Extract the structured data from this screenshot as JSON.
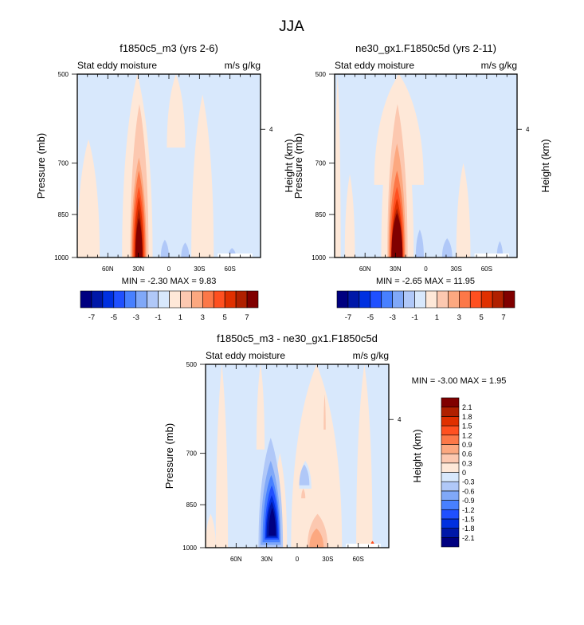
{
  "figure": {
    "title": "JJA"
  },
  "palette": {
    "levels_colors": [
      "#000080",
      "#0018a8",
      "#0030e0",
      "#2050ff",
      "#4880ff",
      "#80a8f8",
      "#b0c8f8",
      "#d8e8fc",
      "#fee8d8",
      "#fcc8b0",
      "#fca880",
      "#fc7848",
      "#ff5020",
      "#e03000",
      "#b02000",
      "#800000"
    ],
    "frame": "#000000"
  },
  "chart_data": [
    {
      "type": "heatmap",
      "id": "panel-test",
      "title": "f1850c5_m3 (yrs 2-6)",
      "subtitle_left": "Stat eddy moisture",
      "subtitle_right": "m/s g/kg",
      "xlabel": "",
      "ylabel": "Pressure (mb)",
      "ylabel_right": "Height (km)",
      "xlim": [
        90,
        -90
      ],
      "ylim": [
        1000,
        500
      ],
      "x_ticks": [
        {
          "v": 60,
          "label": "60N"
        },
        {
          "v": 30,
          "label": "30N"
        },
        {
          "v": 0,
          "label": "0"
        },
        {
          "v": -30,
          "label": "30S"
        },
        {
          "v": -60,
          "label": "60S"
        }
      ],
      "y_ticks": [
        {
          "v": 500,
          "label": "500"
        },
        {
          "v": 700,
          "label": "700"
        },
        {
          "v": 850,
          "label": "850"
        },
        {
          "v": 1000,
          "label": "1000"
        }
      ],
      "y_right_ticks": [
        {
          "p": 616,
          "label": "4"
        }
      ],
      "min_label": "MIN =",
      "min": "-2.30",
      "max_label": "MAX =",
      "max": "9.83",
      "background_level": 7,
      "missing_box": {
        "lat": [
          -48,
          -82
        ],
        "p": [
          1000,
          985
        ]
      },
      "regions": [
        {
          "level": 8,
          "lat": [
            46,
            16
          ],
          "p_top": 500,
          "p_bottom": 1000
        },
        {
          "level": 8,
          "lat": [
            -22,
            -44
          ],
          "p_top": 540,
          "p_bottom": 1000
        },
        {
          "level": 8,
          "lat": [
            90,
            68
          ],
          "p_top": 640,
          "p_bottom": 1000
        },
        {
          "level": 8,
          "lat": [
            2,
            -16
          ],
          "p_top": 500,
          "p_bottom": 660
        },
        {
          "level": 9,
          "lat": [
            38,
            20
          ],
          "p_top": 560,
          "p_bottom": 1000
        },
        {
          "level": 10,
          "lat": [
            37,
            22
          ],
          "p_top": 685,
          "p_bottom": 1000
        },
        {
          "level": 11,
          "lat": [
            36,
            23
          ],
          "p_top": 720,
          "p_bottom": 1000
        },
        {
          "level": 12,
          "lat": [
            35,
            24
          ],
          "p_top": 765,
          "p_bottom": 1000
        },
        {
          "level": 13,
          "lat": [
            34,
            25
          ],
          "p_top": 795,
          "p_bottom": 1000
        },
        {
          "level": 14,
          "lat": [
            33,
            26
          ],
          "p_top": 830,
          "p_bottom": 1000
        },
        {
          "level": 15,
          "lat": [
            33,
            26
          ],
          "p_top": 860,
          "p_bottom": 1000
        },
        {
          "level": 6,
          "lat": [
            8,
            0
          ],
          "p_top": 935,
          "p_bottom": 1000
        },
        {
          "level": 6,
          "lat": [
            -12,
            -20
          ],
          "p_top": 945,
          "p_bottom": 1000
        },
        {
          "level": 6,
          "lat": [
            -58,
            -66
          ],
          "p_top": 965,
          "p_bottom": 1000
        }
      ],
      "colorbar": {
        "orientation": "horizontal",
        "levels": [
          -7,
          -6,
          -5,
          -4,
          -3,
          -2,
          -1,
          0,
          1,
          2,
          3,
          4,
          5,
          6,
          7
        ],
        "tick_labels": [
          "-7",
          "-5",
          "-3",
          "-1",
          "1",
          "3",
          "5",
          "7"
        ]
      }
    },
    {
      "type": "heatmap",
      "id": "panel-control",
      "title": "ne30_gx1.F1850c5d (yrs 2-11)",
      "subtitle_left": "Stat eddy moisture",
      "subtitle_right": "m/s g/kg",
      "xlabel": "",
      "ylabel": "Pressure (mb)",
      "ylabel_right": "Height (km)",
      "xlim": [
        90,
        -90
      ],
      "ylim": [
        1000,
        500
      ],
      "x_ticks": [
        {
          "v": 60,
          "label": "60N"
        },
        {
          "v": 30,
          "label": "30N"
        },
        {
          "v": 0,
          "label": "0"
        },
        {
          "v": -30,
          "label": "30S"
        },
        {
          "v": -60,
          "label": "60S"
        }
      ],
      "y_ticks": [
        {
          "v": 500,
          "label": "500"
        },
        {
          "v": 700,
          "label": "700"
        },
        {
          "v": 850,
          "label": "850"
        },
        {
          "v": 1000,
          "label": "1000"
        }
      ],
      "y_right_ticks": [
        {
          "p": 616,
          "label": "4"
        }
      ],
      "min_label": "MIN =",
      "min": "-2.65",
      "max_label": "MAX =",
      "max": "11.95",
      "background_level": 7,
      "missing_box": {
        "lat": [
          -48,
          -82
        ],
        "p": [
          1000,
          985
        ]
      },
      "regions": [
        {
          "level": 8,
          "lat": [
            90,
            84
          ],
          "p_top": 500,
          "p_bottom": 1000
        },
        {
          "level": 8,
          "lat": [
            51,
            2
          ],
          "p_top": 500,
          "p_bottom": 760
        },
        {
          "level": 8,
          "lat": [
            44,
            12
          ],
          "p_top": 500,
          "p_bottom": 1000
        },
        {
          "level": 8,
          "lat": [
            80,
            70
          ],
          "p_top": 730,
          "p_bottom": 1000
        },
        {
          "level": 8,
          "lat": [
            -30,
            -44
          ],
          "p_top": 700,
          "p_bottom": 1000
        },
        {
          "level": 9,
          "lat": [
            38,
            18
          ],
          "p_top": 560,
          "p_bottom": 1000
        },
        {
          "level": 10,
          "lat": [
            37,
            20
          ],
          "p_top": 650,
          "p_bottom": 1000
        },
        {
          "level": 11,
          "lat": [
            36,
            21
          ],
          "p_top": 720,
          "p_bottom": 1000
        },
        {
          "level": 12,
          "lat": [
            35,
            22
          ],
          "p_top": 765,
          "p_bottom": 1000
        },
        {
          "level": 13,
          "lat": [
            34,
            23
          ],
          "p_top": 800,
          "p_bottom": 1000
        },
        {
          "level": 14,
          "lat": [
            34,
            23
          ],
          "p_top": 830,
          "p_bottom": 1000
        },
        {
          "level": 15,
          "lat": [
            34,
            23
          ],
          "p_top": 845,
          "p_bottom": 1000
        },
        {
          "level": 6,
          "lat": [
            10,
            2
          ],
          "p_top": 900,
          "p_bottom": 1000
        },
        {
          "level": 6,
          "lat": [
            -16,
            -26
          ],
          "p_top": 930,
          "p_bottom": 1000
        },
        {
          "level": 6,
          "lat": [
            -70,
            -76
          ],
          "p_top": 940,
          "p_bottom": 1000
        }
      ],
      "colorbar": {
        "orientation": "horizontal",
        "levels": [
          -7,
          -6,
          -5,
          -4,
          -3,
          -2,
          -1,
          0,
          1,
          2,
          3,
          4,
          5,
          6,
          7
        ],
        "tick_labels": [
          "-7",
          "-5",
          "-3",
          "-1",
          "1",
          "3",
          "5",
          "7"
        ]
      }
    },
    {
      "type": "heatmap",
      "id": "panel-diff",
      "title": "f1850c5_m3 - ne30_gx1.F1850c5d",
      "subtitle_left": "Stat eddy moisture",
      "subtitle_right": "m/s g/kg",
      "xlabel": "",
      "ylabel": "Pressure (mb)",
      "ylabel_right": "Height (km)",
      "xlim": [
        90,
        -90
      ],
      "ylim": [
        1000,
        500
      ],
      "x_ticks": [
        {
          "v": 60,
          "label": "60N"
        },
        {
          "v": 30,
          "label": "30N"
        },
        {
          "v": 0,
          "label": "0"
        },
        {
          "v": -30,
          "label": "30S"
        },
        {
          "v": -60,
          "label": "60S"
        }
      ],
      "y_ticks": [
        {
          "v": 500,
          "label": "500"
        },
        {
          "v": 700,
          "label": "700"
        },
        {
          "v": 850,
          "label": "850"
        },
        {
          "v": 1000,
          "label": "1000"
        }
      ],
      "y_right_ticks": [
        {
          "p": 616,
          "label": "4"
        }
      ],
      "min_label": "MIN =",
      "min": "-3.00",
      "max_label": "MAX =",
      "max": "1.95",
      "background_level": 7,
      "missing_box": {
        "lat": [
          -48,
          -82
        ],
        "p": [
          1000,
          985
        ]
      },
      "regions": [
        {
          "level": 8,
          "lat": [
            80,
            68
          ],
          "p_top": 500,
          "p_bottom": 1000
        },
        {
          "level": 8,
          "lat": [
            40,
            32
          ],
          "p_top": 500,
          "p_bottom": 690
        },
        {
          "level": 8,
          "lat": [
            6,
            -44
          ],
          "p_top": 500,
          "p_bottom": 1000
        },
        {
          "level": 8,
          "lat": [
            -58,
            -74
          ],
          "p_top": 500,
          "p_bottom": 985
        },
        {
          "level": 8,
          "lat": [
            90,
            80
          ],
          "p_top": 880,
          "p_bottom": 1000
        },
        {
          "level": 8,
          "lat": [
            24,
            10
          ],
          "p_top": 700,
          "p_bottom": 1000
        },
        {
          "level": 7,
          "lat": [
            -2,
            -14
          ],
          "p_top": 720,
          "p_bottom": 800
        },
        {
          "level": 6,
          "lat": [
            -2,
            -12
          ],
          "p_top": 730,
          "p_bottom": 790
        },
        {
          "level": 9,
          "lat": [
            -4,
            -8
          ],
          "p_top": 800,
          "p_bottom": 830
        },
        {
          "level": 9,
          "lat": [
            -26,
            -28
          ],
          "p_top": 560,
          "p_bottom": 640
        },
        {
          "level": 9,
          "lat": [
            -10,
            -30
          ],
          "p_top": 880,
          "p_bottom": 1000
        },
        {
          "level": 10,
          "lat": [
            -12,
            -26
          ],
          "p_top": 930,
          "p_bottom": 1000
        },
        {
          "level": 6,
          "lat": [
            38,
            14
          ],
          "p_top": 660,
          "p_bottom": 1000
        },
        {
          "level": 5,
          "lat": [
            36,
            16
          ],
          "p_top": 720,
          "p_bottom": 990
        },
        {
          "level": 4,
          "lat": [
            34,
            17
          ],
          "p_top": 760,
          "p_bottom": 980
        },
        {
          "level": 3,
          "lat": [
            32,
            18
          ],
          "p_top": 790,
          "p_bottom": 970
        },
        {
          "level": 2,
          "lat": [
            31,
            19
          ],
          "p_top": 820,
          "p_bottom": 965
        },
        {
          "level": 1,
          "lat": [
            30,
            20
          ],
          "p_top": 840,
          "p_bottom": 960
        },
        {
          "level": 0,
          "lat": [
            28,
            21
          ],
          "p_top": 860,
          "p_bottom": 955
        },
        {
          "level": 12,
          "lat": [
            -72,
            -76
          ],
          "p_top": 975,
          "p_bottom": 995
        }
      ],
      "colorbar": {
        "orientation": "vertical",
        "levels": [
          -2.1,
          -1.8,
          -1.5,
          -1.2,
          -0.9,
          -0.6,
          -0.3,
          0,
          0.3,
          0.6,
          0.9,
          1.2,
          1.5,
          1.8,
          2.1
        ],
        "tick_labels": [
          "-2.1",
          "-1.8",
          "-1.5",
          "-1.2",
          "-0.9",
          "-0.6",
          "-0.3",
          "0",
          "0.3",
          "0.6",
          "0.9",
          "1.2",
          "1.5",
          "1.8",
          "2.1"
        ]
      }
    }
  ]
}
